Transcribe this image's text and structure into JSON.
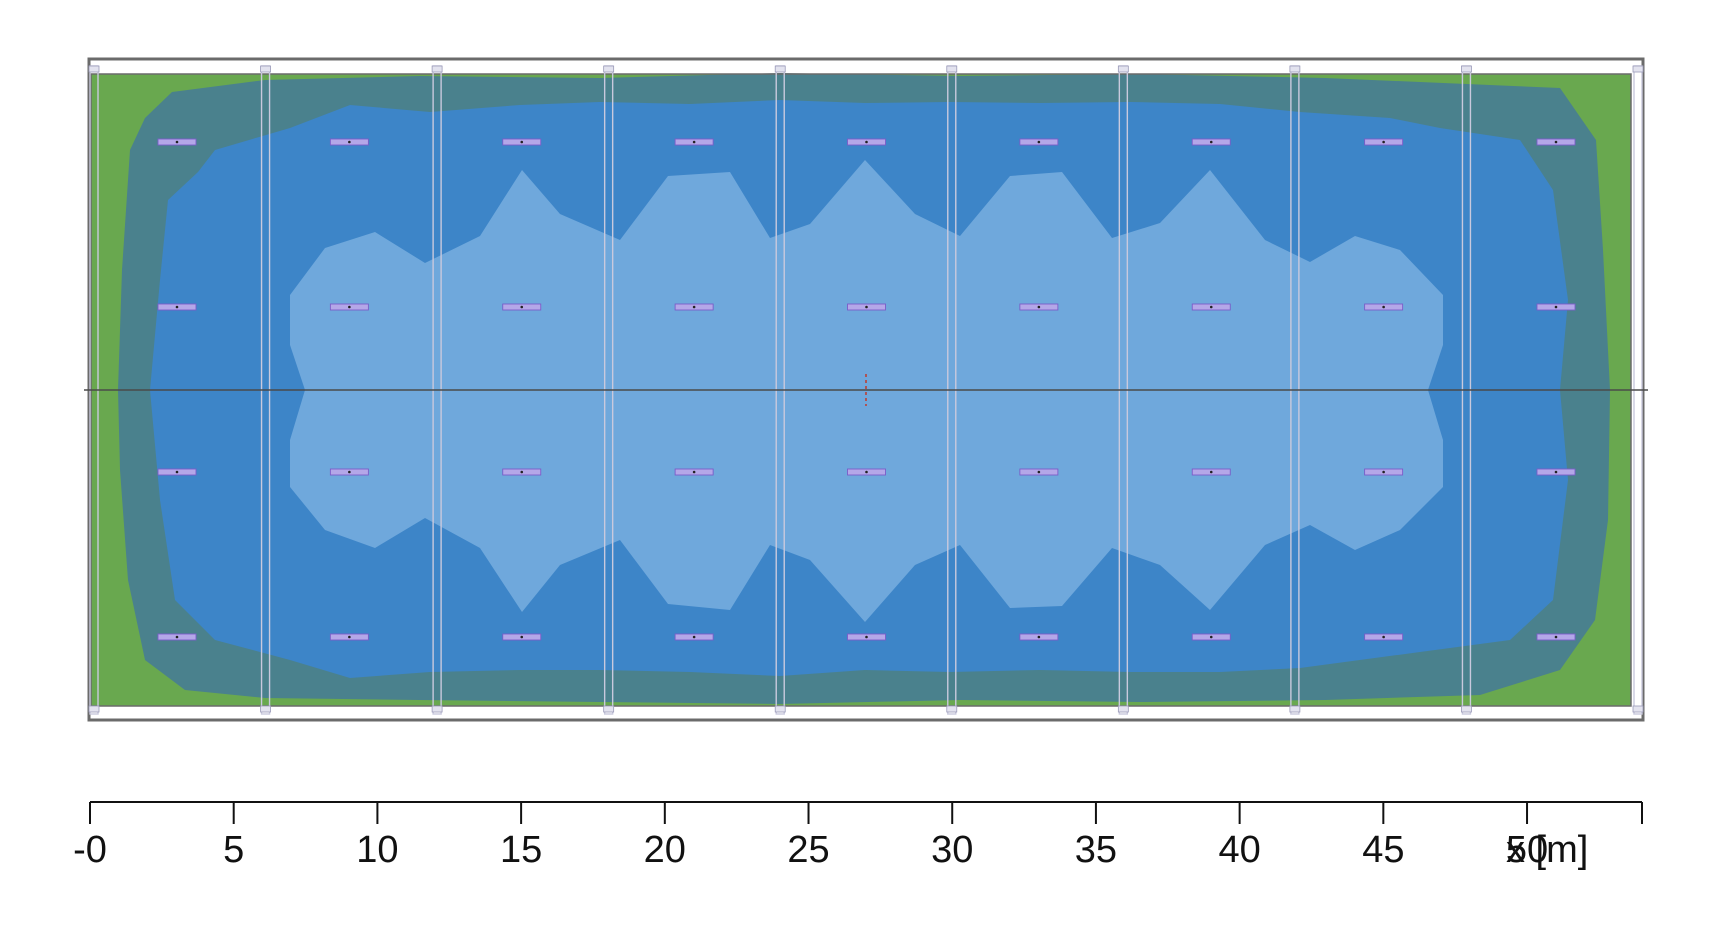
{
  "plan": {
    "zone_colors": {
      "outer": "#69a84f",
      "band_2": "#4a818d",
      "band_3": "#3d85c8",
      "core": "#6fa8dc",
      "frame": "#6b6b6b",
      "beam": "#c9c9dd",
      "luminaire_fill": "#b4a7e8",
      "luminaire_edge": "#7a5cc8"
    },
    "luminaire_columns": 9,
    "luminaire_rows": 4,
    "beam_count": 10
  },
  "axis": {
    "title": "x [m]",
    "unit": "m",
    "min": 0,
    "max": 54,
    "ticks": [
      {
        "value": 0,
        "label": "-0"
      },
      {
        "value": 5,
        "label": "5"
      },
      {
        "value": 10,
        "label": "10"
      },
      {
        "value": 15,
        "label": "15"
      },
      {
        "value": 20,
        "label": "20"
      },
      {
        "value": 25,
        "label": "25"
      },
      {
        "value": 30,
        "label": "30"
      },
      {
        "value": 35,
        "label": "35"
      },
      {
        "value": 40,
        "label": "40"
      },
      {
        "value": 45,
        "label": "45"
      },
      {
        "value": 50,
        "label": "50"
      }
    ]
  }
}
